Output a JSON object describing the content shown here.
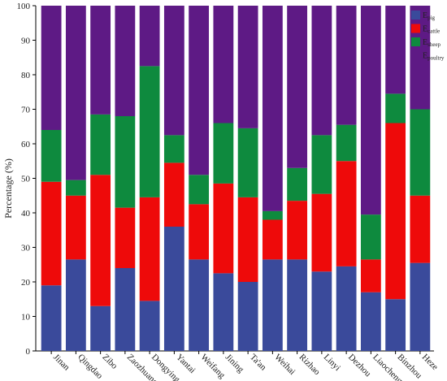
{
  "chart_data": {
    "type": "bar",
    "stacked": true,
    "title": "",
    "xlabel": "",
    "ylabel": "Percentage (%)",
    "ylim": [
      0,
      100
    ],
    "yticks": [
      0,
      10,
      20,
      30,
      40,
      50,
      60,
      70,
      80,
      90,
      100
    ],
    "grid": false,
    "legend_position": "top-right",
    "categories": [
      "Jinan",
      "Qingdao",
      "Zibo",
      "Zaozhuang",
      "Dongying",
      "Yantai",
      "Weifang",
      "Jining",
      "Ta'an",
      "Weihai",
      "Rizhao",
      "Linyi",
      "Dezhou",
      "Liaocheng",
      "Binzhou",
      "Heze"
    ],
    "series": [
      {
        "name": "E",
        "sub": "pig",
        "color": "#3a4a9b",
        "values": [
          19,
          26.5,
          13,
          24,
          14.5,
          36,
          26.5,
          22.5,
          20,
          26.5,
          26.5,
          23,
          24.5,
          17,
          15,
          25.5
        ]
      },
      {
        "name": "E",
        "sub": "cattle",
        "color": "#ee0a0a",
        "values": [
          30,
          18.5,
          38,
          17.5,
          30,
          18.5,
          16,
          26,
          24.5,
          11.5,
          17,
          22.5,
          30.5,
          9.5,
          51,
          19.5
        ]
      },
      {
        "name": "E",
        "sub": "sheep",
        "color": "#0e8a3e",
        "values": [
          15,
          4.5,
          17.5,
          26.5,
          38,
          8,
          8.5,
          17.5,
          20,
          2.5,
          9.5,
          17,
          10.5,
          13,
          8.5,
          25
        ]
      },
      {
        "name": "E",
        "sub": "poultry",
        "color": "#5e1a85",
        "values": [
          36,
          50.5,
          31.5,
          32,
          17.5,
          37.5,
          49,
          34,
          35.5,
          59.5,
          47,
          37.5,
          34.5,
          60.5,
          25.5,
          30
        ]
      }
    ]
  }
}
